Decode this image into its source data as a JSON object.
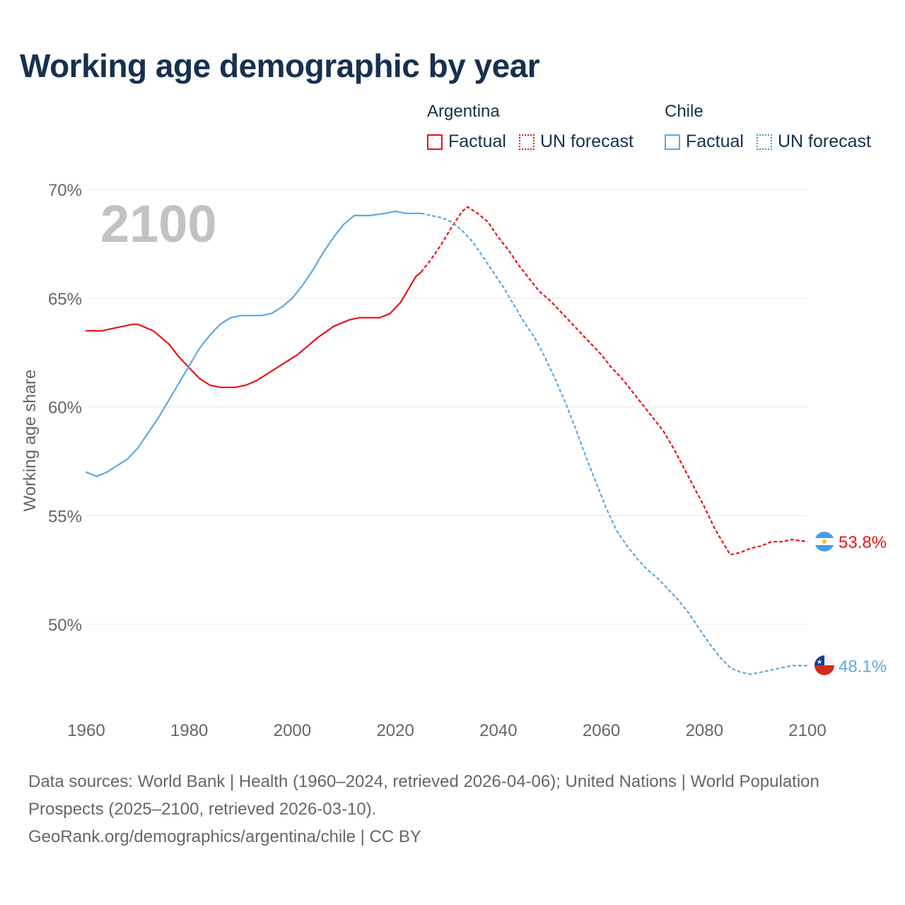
{
  "title": "Working age demographic by year",
  "legend": {
    "groups": [
      {
        "name": "Argentina",
        "factual_label": "Factual",
        "forecast_label": "UN forecast",
        "color": "#e8141b"
      },
      {
        "name": "Chile",
        "factual_label": "Factual",
        "forecast_label": "UN forecast",
        "color": "#5ea8e4"
      }
    ]
  },
  "year_overlay": "2100",
  "source": {
    "line1": "Data sources: World Bank | Health (1960–2024, retrieved 2026-04-06); United Nations | World Population Prospects (2025–2100, retrieved 2026-03-10).",
    "line2": "GeoRank.org/demographics/argentina/chile | CC BY"
  },
  "chart_data": {
    "type": "line",
    "title": "Working age demographic by year",
    "ylabel": "Working age share",
    "xlabel": "",
    "xlim": [
      1960,
      2100
    ],
    "ylim": [
      46.5,
      71
    ],
    "x_ticks": [
      1960,
      1980,
      2000,
      2020,
      2040,
      2060,
      2080,
      2100
    ],
    "y_ticks": [
      50,
      55,
      60,
      65,
      70
    ],
    "y_tick_labels": [
      "50%",
      "55%",
      "60%",
      "65%",
      "70%"
    ],
    "x_tick_labels": [
      "1960",
      "1980",
      "2000",
      "2020",
      "2040",
      "2060",
      "2080",
      "2100"
    ],
    "grid": true,
    "forecast_start": 2025,
    "series": [
      {
        "name": "Argentina",
        "color": "#e8141b",
        "end_label": "53.8%",
        "points": [
          [
            1960,
            63.5
          ],
          [
            1963,
            63.5
          ],
          [
            1965,
            63.6
          ],
          [
            1967,
            63.7
          ],
          [
            1969,
            63.8
          ],
          [
            1970,
            63.8
          ],
          [
            1973,
            63.5
          ],
          [
            1976,
            62.9
          ],
          [
            1978,
            62.3
          ],
          [
            1980,
            61.8
          ],
          [
            1982,
            61.3
          ],
          [
            1984,
            61.0
          ],
          [
            1986,
            60.9
          ],
          [
            1989,
            60.9
          ],
          [
            1991,
            61.0
          ],
          [
            1993,
            61.2
          ],
          [
            1995,
            61.5
          ],
          [
            1997,
            61.8
          ],
          [
            1999,
            62.1
          ],
          [
            2001,
            62.4
          ],
          [
            2003,
            62.8
          ],
          [
            2005,
            63.2
          ],
          [
            2008,
            63.7
          ],
          [
            2011,
            64.0
          ],
          [
            2013,
            64.1
          ],
          [
            2017,
            64.1
          ],
          [
            2019,
            64.3
          ],
          [
            2021,
            64.8
          ],
          [
            2023,
            65.6
          ],
          [
            2024,
            66.0
          ],
          [
            2025,
            66.2
          ],
          [
            2027,
            66.8
          ],
          [
            2029,
            67.5
          ],
          [
            2031,
            68.3
          ],
          [
            2033,
            69.0
          ],
          [
            2034,
            69.2
          ],
          [
            2036,
            68.9
          ],
          [
            2038,
            68.5
          ],
          [
            2040,
            67.8
          ],
          [
            2042,
            67.2
          ],
          [
            2044,
            66.5
          ],
          [
            2046,
            65.9
          ],
          [
            2048,
            65.3
          ],
          [
            2050,
            64.9
          ],
          [
            2052,
            64.4
          ],
          [
            2054,
            63.9
          ],
          [
            2056,
            63.4
          ],
          [
            2058,
            62.9
          ],
          [
            2060,
            62.4
          ],
          [
            2062,
            61.8
          ],
          [
            2064,
            61.3
          ],
          [
            2066,
            60.7
          ],
          [
            2068,
            60.1
          ],
          [
            2070,
            59.5
          ],
          [
            2072,
            58.9
          ],
          [
            2074,
            58.1
          ],
          [
            2076,
            57.2
          ],
          [
            2078,
            56.3
          ],
          [
            2080,
            55.4
          ],
          [
            2082,
            54.4
          ],
          [
            2084,
            53.6
          ],
          [
            2085,
            53.2
          ],
          [
            2087,
            53.3
          ],
          [
            2089,
            53.5
          ],
          [
            2091,
            53.6
          ],
          [
            2093,
            53.8
          ],
          [
            2095,
            53.8
          ],
          [
            2097,
            53.9
          ],
          [
            2100,
            53.8
          ]
        ]
      },
      {
        "name": "Chile",
        "color": "#5ea8e4",
        "end_label": "48.1%",
        "points": [
          [
            1960,
            57.0
          ],
          [
            1962,
            56.8
          ],
          [
            1964,
            57.0
          ],
          [
            1966,
            57.3
          ],
          [
            1968,
            57.6
          ],
          [
            1970,
            58.1
          ],
          [
            1972,
            58.8
          ],
          [
            1974,
            59.5
          ],
          [
            1976,
            60.3
          ],
          [
            1978,
            61.1
          ],
          [
            1980,
            61.9
          ],
          [
            1982,
            62.7
          ],
          [
            1984,
            63.3
          ],
          [
            1986,
            63.8
          ],
          [
            1988,
            64.1
          ],
          [
            1990,
            64.2
          ],
          [
            1992,
            64.2
          ],
          [
            1994,
            64.2
          ],
          [
            1996,
            64.3
          ],
          [
            1998,
            64.6
          ],
          [
            2000,
            65.0
          ],
          [
            2002,
            65.6
          ],
          [
            2004,
            66.3
          ],
          [
            2006,
            67.1
          ],
          [
            2008,
            67.8
          ],
          [
            2010,
            68.4
          ],
          [
            2012,
            68.8
          ],
          [
            2015,
            68.8
          ],
          [
            2018,
            68.9
          ],
          [
            2020,
            69.0
          ],
          [
            2022,
            68.9
          ],
          [
            2025,
            68.9
          ],
          [
            2027,
            68.8
          ],
          [
            2029,
            68.7
          ],
          [
            2031,
            68.5
          ],
          [
            2033,
            68.1
          ],
          [
            2035,
            67.6
          ],
          [
            2037,
            66.9
          ],
          [
            2039,
            66.2
          ],
          [
            2041,
            65.5
          ],
          [
            2043,
            64.7
          ],
          [
            2045,
            63.9
          ],
          [
            2047,
            63.2
          ],
          [
            2049,
            62.3
          ],
          [
            2051,
            61.3
          ],
          [
            2053,
            60.2
          ],
          [
            2055,
            59.0
          ],
          [
            2057,
            57.7
          ],
          [
            2059,
            56.5
          ],
          [
            2061,
            55.3
          ],
          [
            2063,
            54.3
          ],
          [
            2065,
            53.6
          ],
          [
            2067,
            53.0
          ],
          [
            2069,
            52.5
          ],
          [
            2071,
            52.1
          ],
          [
            2073,
            51.6
          ],
          [
            2075,
            51.1
          ],
          [
            2077,
            50.5
          ],
          [
            2079,
            49.8
          ],
          [
            2081,
            49.1
          ],
          [
            2083,
            48.5
          ],
          [
            2085,
            48.0
          ],
          [
            2087,
            47.8
          ],
          [
            2089,
            47.7
          ],
          [
            2091,
            47.8
          ],
          [
            2093,
            47.9
          ],
          [
            2095,
            48.0
          ],
          [
            2097,
            48.1
          ],
          [
            2100,
            48.1
          ]
        ]
      }
    ]
  }
}
